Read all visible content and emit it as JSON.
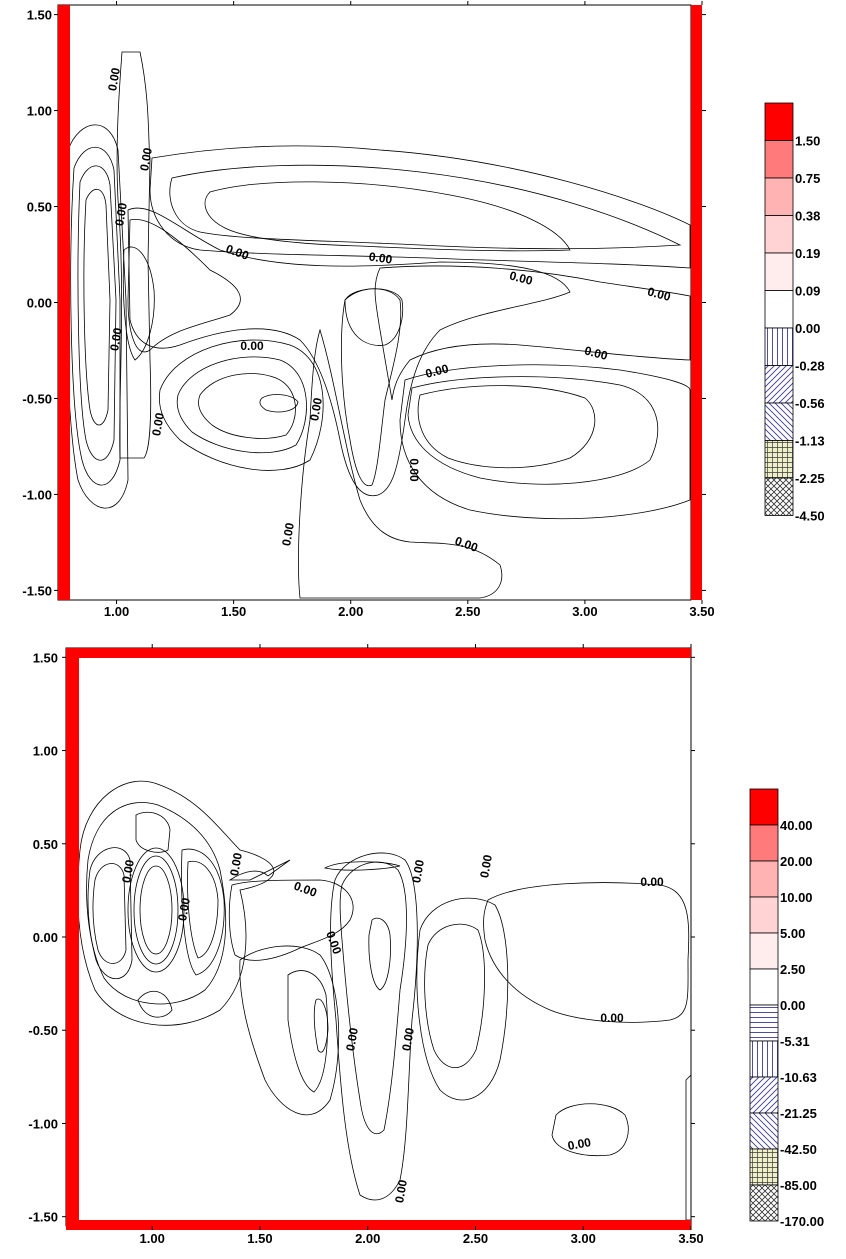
{
  "chart_data": [
    {
      "type": "contour",
      "title": "",
      "xlabel": "",
      "ylabel": "",
      "xlim": [
        0.75,
        3.5
      ],
      "ylim": [
        -1.55,
        1.55
      ],
      "x_ticks": [
        "1.00",
        "1.50",
        "2.00",
        "2.50",
        "3.00",
        "3.50"
      ],
      "y_ticks": [
        "1.50",
        "1.00",
        "0.50",
        "0.00",
        "-0.50",
        "-1.00",
        "-1.50"
      ],
      "contour_label": "0.00",
      "legend_levels": [
        "1.50",
        "0.75",
        "0.38",
        "0.19",
        "0.09",
        "0.00",
        "-0.28",
        "-0.56",
        "-1.13",
        "-2.25",
        "-4.50"
      ],
      "legend_fills": [
        "#ff0000",
        "#ff7b7b",
        "#ffb3b3",
        "#ffd3d3",
        "#ffecec",
        "#ffffff",
        "vlines",
        "diag",
        "diag2",
        "grid",
        "cross"
      ],
      "boundary_color": "#ff0000",
      "zero_contour_labels": 15
    },
    {
      "type": "contour",
      "title": "",
      "xlabel": "",
      "ylabel": "",
      "xlim": [
        0.6,
        3.5
      ],
      "ylim": [
        -1.55,
        1.55
      ],
      "x_ticks": [
        "1.00",
        "1.50",
        "2.00",
        "2.50",
        "3.00",
        "3.50"
      ],
      "y_ticks": [
        "1.50",
        "1.00",
        "0.50",
        "0.00",
        "-0.50",
        "-1.00",
        "-1.50"
      ],
      "contour_label": "0.00",
      "legend_levels": [
        "40.00",
        "20.00",
        "10.00",
        "5.00",
        "2.50",
        "0.00",
        "-5.31",
        "-10.63",
        "-21.25",
        "-42.50",
        "-85.00",
        "-170.00"
      ],
      "legend_fills": [
        "#ff0000",
        "#ff7b7b",
        "#ffb3b3",
        "#ffd3d3",
        "#ffecec",
        "#ffffff",
        "hlines",
        "vlines",
        "diag",
        "diag2",
        "grid",
        "cross"
      ],
      "boundary_color": "#ff0000",
      "zero_contour_labels": 12
    }
  ]
}
